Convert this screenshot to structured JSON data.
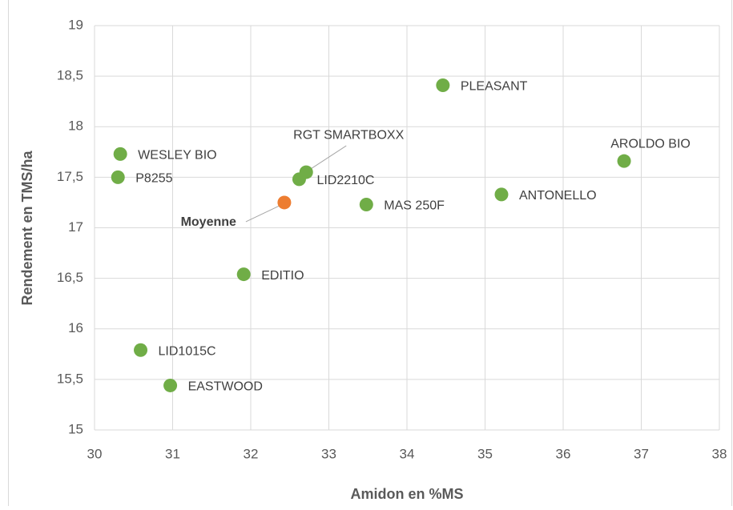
{
  "chart_data": {
    "type": "scatter",
    "xlabel": "Amidon en %MS",
    "ylabel": "Rendement en TMS/ha",
    "xlim": [
      30,
      38
    ],
    "xticks": [
      30,
      31,
      32,
      33,
      34,
      35,
      36,
      37,
      38
    ],
    "ylim": [
      15,
      19
    ],
    "yticks": [
      15,
      {
        "value": 15.5,
        "label": "15,5"
      },
      16,
      {
        "value": 16.5,
        "label": "16,5"
      },
      17,
      {
        "value": 17.5,
        "label": "17,5"
      },
      18,
      {
        "value": 18.5,
        "label": "18,5"
      },
      19
    ],
    "grid": true,
    "series": [
      {
        "color": "#70ad47",
        "labels": [
          "WESLEY BIO",
          "P8255",
          "RGT SMARTBOXX",
          "LID2210C",
          "PLEASANT",
          "AROLDO BIO",
          "ANTONELLO",
          "MAS 250F",
          "EDITIO",
          "LID1015C",
          "EASTWOOD"
        ],
        "x": [
          30.33,
          30.3,
          32.71,
          32.62,
          34.46,
          36.78,
          35.21,
          33.48,
          31.91,
          30.59,
          30.97
        ],
        "values": [
          17.73,
          17.5,
          17.55,
          17.48,
          18.41,
          17.66,
          17.33,
          17.23,
          16.54,
          15.79,
          15.44
        ]
      },
      {
        "color": "#ed7d31",
        "labels": [
          "Moyenne"
        ],
        "x": [
          32.43
        ],
        "values": [
          17.25
        ]
      }
    ]
  }
}
